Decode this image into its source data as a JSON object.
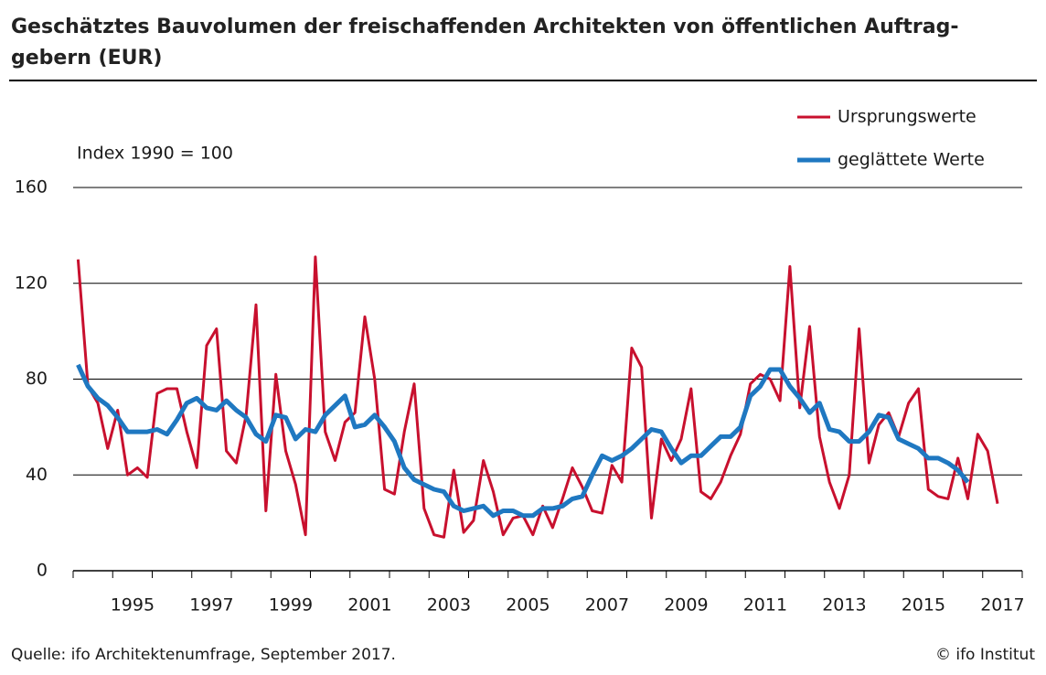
{
  "chart_data": {
    "type": "line",
    "title": [
      "Geschätztes Bauvolumen der freischaffenden Architekten von öffentlichen Auftrag-",
      "gebern (EUR)"
    ],
    "annotation": "Index 1990 = 100",
    "source": "Quelle: ifo Architektenumfrage, September 2017.",
    "credit": "© ifo Institut",
    "categories": [
      null,
      null,
      null,
      null,
      null,
      "1995",
      null,
      null,
      null,
      null,
      null,
      null,
      null,
      "1997",
      null,
      null,
      null,
      null,
      null,
      null,
      null,
      "1999",
      null,
      null,
      null,
      null,
      null,
      null,
      null,
      "2001",
      null,
      null,
      null,
      null,
      null,
      null,
      null,
      "2003",
      null,
      null,
      null,
      null,
      null,
      null,
      null,
      "2005",
      null,
      null,
      null,
      null,
      null,
      null,
      null,
      "2007",
      null,
      null,
      null,
      null,
      null,
      null,
      null,
      "2009",
      null,
      null,
      null,
      null,
      null,
      null,
      null,
      "2011",
      null,
      null,
      null,
      null,
      null,
      null,
      null,
      "2013",
      null,
      null,
      null,
      null,
      null,
      null,
      null,
      "2015",
      null,
      null,
      null,
      null,
      null,
      null,
      null,
      "2017",
      null,
      null
    ],
    "series": [
      {
        "name": "Ursprungswerte",
        "color": "#c8102e",
        "width": 3,
        "values": [
          130,
          77,
          70,
          51,
          67,
          40,
          43,
          39,
          74,
          76,
          76,
          58,
          43,
          94,
          101,
          50,
          45,
          65,
          111,
          25,
          82,
          50,
          36,
          15,
          131,
          58,
          46,
          62,
          66,
          106,
          80,
          34,
          32,
          58,
          78,
          26,
          15,
          14,
          42,
          16,
          21,
          46,
          33,
          15,
          22,
          23,
          15,
          27,
          18,
          30,
          43,
          35,
          25,
          24,
          44,
          37,
          93,
          85,
          22,
          55,
          46,
          55,
          76,
          33,
          30,
          37,
          48,
          57,
          78,
          82,
          80,
          71,
          127,
          68,
          102,
          56,
          37,
          26,
          40,
          101,
          45,
          61,
          66,
          56,
          70,
          76,
          34,
          31,
          30,
          47,
          30,
          57,
          50,
          28,
          null,
          null
        ]
      },
      {
        "name": "geglättete Werte",
        "color": "#1f78c1",
        "width": 5,
        "values": [
          86,
          77,
          72,
          69,
          64,
          58,
          58,
          58,
          59,
          57,
          63,
          70,
          72,
          68,
          67,
          71,
          67,
          64,
          57,
          54,
          65,
          64,
          55,
          59,
          58,
          65,
          69,
          73,
          60,
          61,
          65,
          60,
          54,
          43,
          38,
          36,
          34,
          33,
          27,
          25,
          26,
          27,
          23,
          25,
          25,
          23,
          23,
          26,
          26,
          27,
          30,
          31,
          40,
          48,
          46,
          48,
          51,
          55,
          59,
          58,
          51,
          45,
          48,
          48,
          52,
          56,
          56,
          60,
          73,
          77,
          84,
          84,
          77,
          72,
          66,
          70,
          59,
          58,
          54,
          54,
          58,
          65,
          64,
          55,
          53,
          51,
          47,
          47,
          45,
          42,
          37,
          null,
          null,
          null,
          null,
          null
        ]
      }
    ],
    "ylim": [
      0,
      160
    ],
    "yticks": [
      0,
      40,
      80,
      120,
      160
    ],
    "grid": true,
    "legend": "top-right"
  }
}
